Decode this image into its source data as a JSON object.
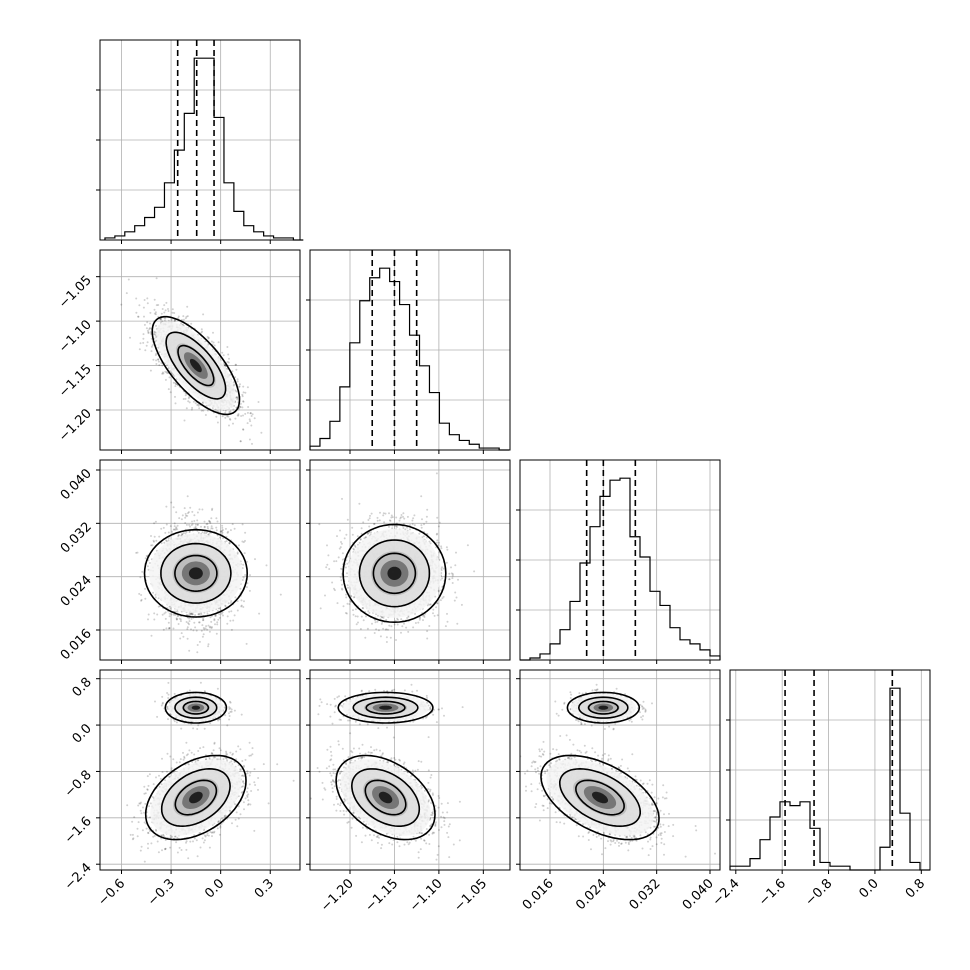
{
  "chart_data": {
    "type": "corner",
    "title": "",
    "parameters": [
      {
        "name": "",
        "range": [
          -0.73,
          0.48
        ],
        "ticks": [
          "−0.6",
          "−0.3",
          "0.0",
          "0.3"
        ],
        "tick_values": [
          -0.6,
          -0.3,
          0.0,
          0.3
        ],
        "quantiles": [
          -0.26,
          -0.145,
          -0.04
        ],
        "mean": -0.15,
        "sd": 0.12
      },
      {
        "name": "",
        "range": [
          -1.245,
          -1.02
        ],
        "ticks": [
          "−1.20",
          "−1.15",
          "−1.10",
          "−1.05"
        ],
        "tick_values": [
          -1.2,
          -1.15,
          -1.1,
          -1.05
        ],
        "quantiles": [
          -1.175,
          -1.15,
          -1.125
        ],
        "mean": -1.15,
        "sd": 0.025
      },
      {
        "name": "",
        "range": [
          0.0115,
          0.0415
        ],
        "ticks": [
          "0.016",
          "0.024",
          "0.032",
          "0.040"
        ],
        "tick_values": [
          0.016,
          0.024,
          0.032,
          0.04
        ],
        "quantiles": [
          0.0215,
          0.024,
          0.0288
        ],
        "mean": 0.0245,
        "sd": 0.0035
      },
      {
        "name": "",
        "range": [
          -2.5,
          0.95
        ],
        "ticks": [
          "−2.4",
          "−1.6",
          "−0.8",
          "0.0",
          "0.8"
        ],
        "tick_values": [
          -2.4,
          -1.6,
          -0.8,
          0.0,
          0.8
        ],
        "quantiles": [
          -1.55,
          -1.05,
          0.3
        ]
      }
    ],
    "histograms": [
      {
        "param": 0,
        "edges_start": -0.7,
        "bin_width": 0.06,
        "counts": [
          1,
          2,
          4,
          7,
          11,
          16,
          28,
          44,
          62,
          89,
          89,
          60,
          28,
          14,
          7,
          4,
          2,
          1,
          1,
          0
        ]
      },
      {
        "param": 1,
        "edges_start": -1.245,
        "bin_width": 0.0112,
        "counts": [
          2,
          6,
          15,
          33,
          56,
          78,
          90,
          95,
          88,
          76,
          60,
          44,
          30,
          14,
          8,
          5,
          3,
          1,
          1,
          0
        ]
      },
      {
        "param": 2,
        "edges_start": 0.0115,
        "bin_width": 0.0015,
        "counts": [
          0,
          1,
          3,
          8,
          15,
          29,
          48,
          66,
          81,
          89,
          90,
          61,
          51,
          34,
          27,
          16,
          10,
          8,
          5,
          2
        ]
      },
      {
        "param": 3,
        "edges_start": -2.5,
        "bin_width": 0.1725,
        "counts": [
          1,
          1,
          3,
          8,
          14,
          18,
          17,
          18,
          11,
          2,
          1,
          1,
          0,
          0,
          0,
          6,
          48,
          15,
          2,
          0
        ]
      }
    ],
    "density_panels": [
      {
        "x": 0,
        "y": 1,
        "correlation": -0.7
      },
      {
        "x": 0,
        "y": 2,
        "correlation": 0.0
      },
      {
        "x": 1,
        "y": 2,
        "correlation": 0.0
      },
      {
        "x": 0,
        "y": 3,
        "correlation": 0.4
      },
      {
        "x": 1,
        "y": 3,
        "correlation": -0.4
      },
      {
        "x": 2,
        "y": 3,
        "correlation": -0.5
      }
    ],
    "contour_levels": [
      "39.3%",
      "86.5%",
      "98.9%"
    ],
    "grid": true,
    "legend": "none"
  }
}
